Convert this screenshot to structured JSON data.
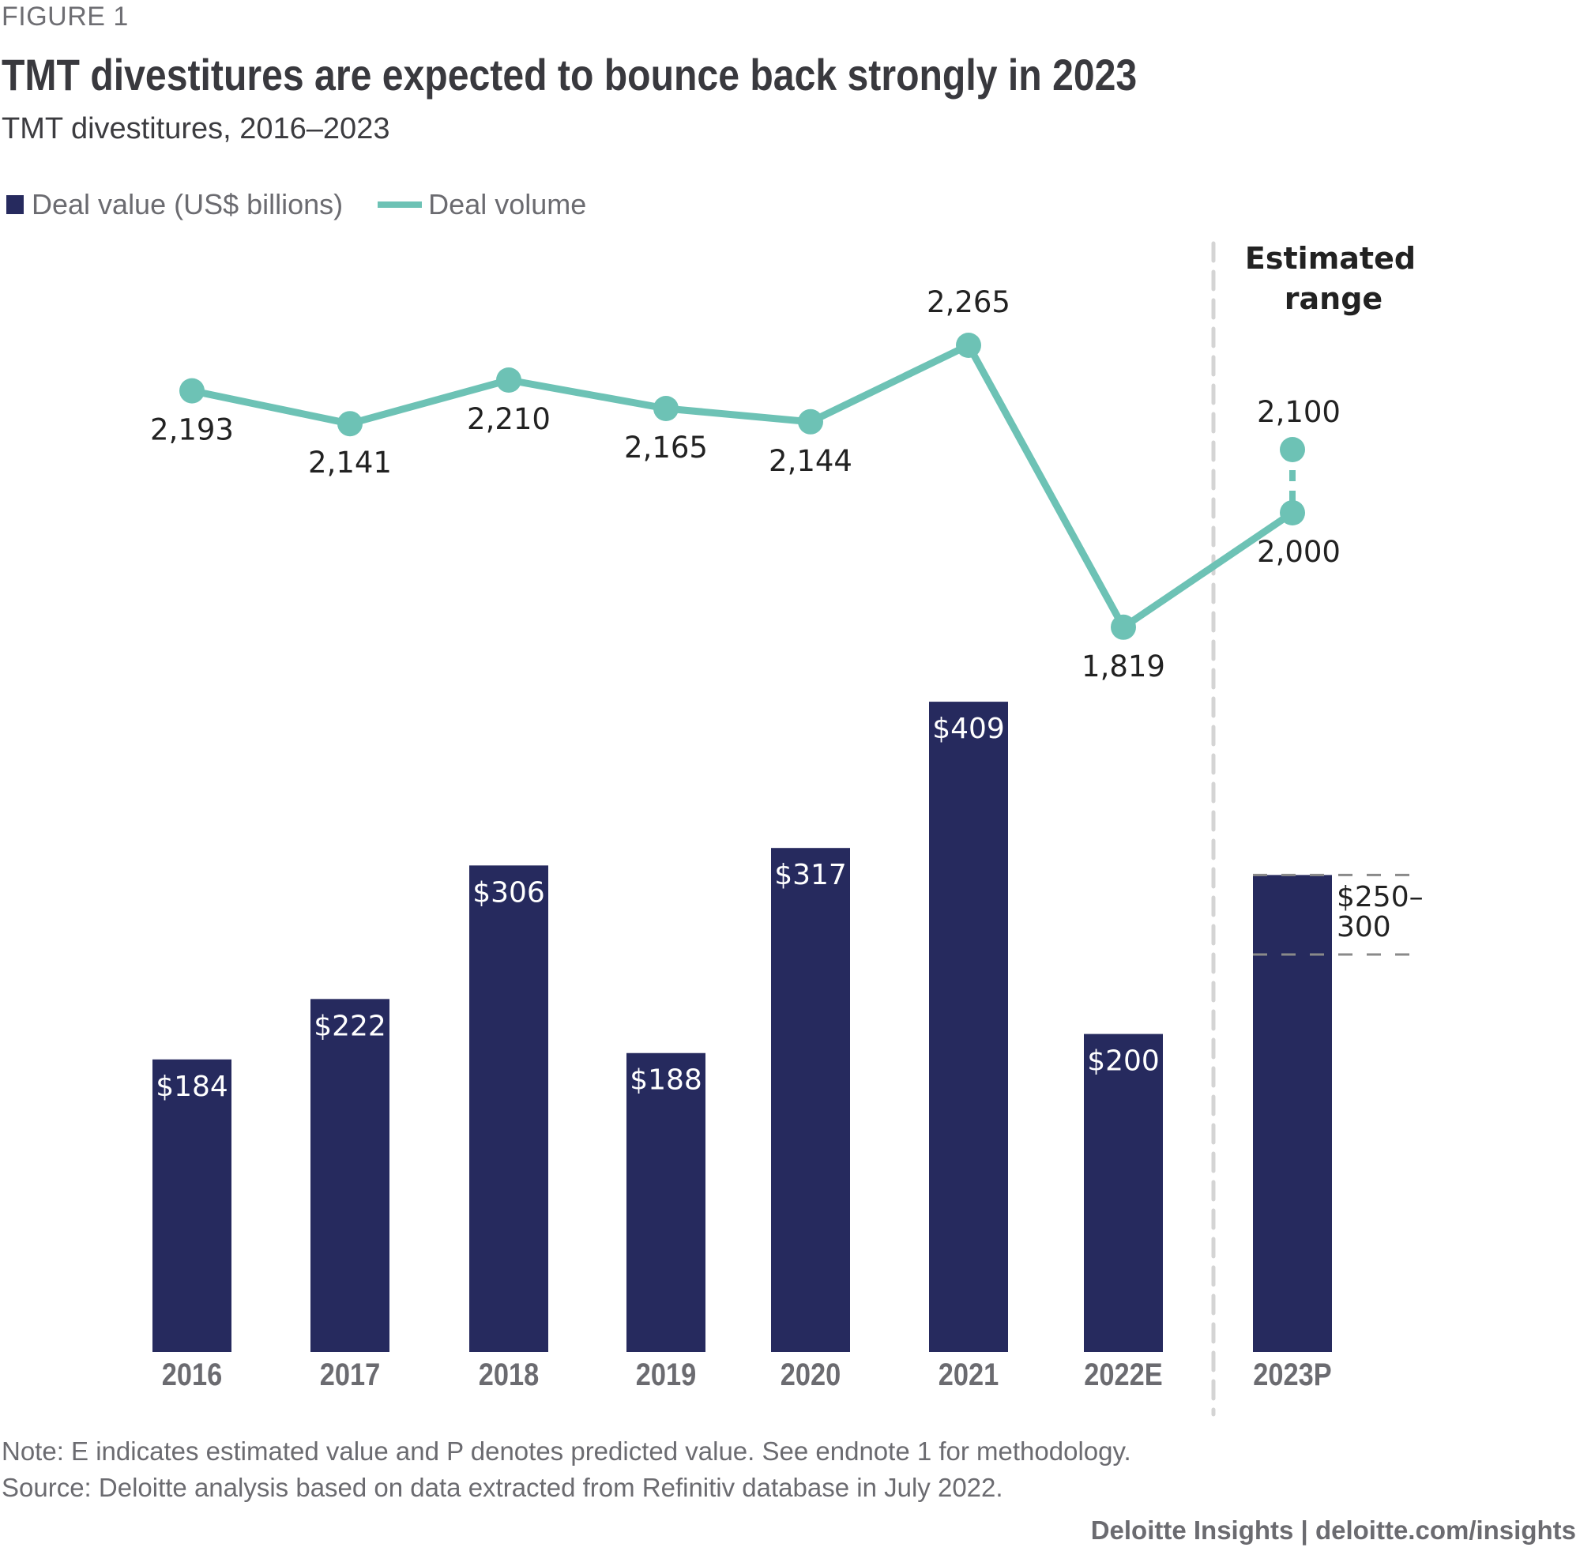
{
  "header": {
    "figure_label": "FIGURE 1",
    "title": "TMT divestitures are expected to bounce back strongly in 2023",
    "subtitle": "TMT divestitures, 2016–2023"
  },
  "legend": {
    "bar_label": "Deal value (US$ billions)",
    "line_label": "Deal volume"
  },
  "annotation": {
    "estimated_range_line1": "Estimated",
    "estimated_range_line2": "range"
  },
  "colors": {
    "bar": "#262a5e",
    "line": "#6dc2b5",
    "text_dark": "#222222",
    "axis_label": "#6b6b70",
    "divider": "#d4d4d4",
    "range_dash": "#8a8a8a"
  },
  "chart_data": {
    "type": "bar",
    "title": "TMT divestitures are expected to bounce back strongly in 2023",
    "subtitle": "TMT divestitures, 2016–2023",
    "xlabel": "",
    "ylabel": "",
    "grid": false,
    "legend_position": "top-left",
    "categories": [
      "2016",
      "2017",
      "2018",
      "2019",
      "2020",
      "2021",
      "2022E",
      "2023P"
    ],
    "series": [
      {
        "name": "Deal value (US$ billions)",
        "type": "bar",
        "values": [
          184,
          222,
          306,
          188,
          317,
          409,
          200,
          300
        ],
        "labels": [
          "$184",
          "$222",
          "$306",
          "$188",
          "$317",
          "$409",
          "$200",
          "$250–300"
        ],
        "range_last": [
          250,
          300
        ]
      },
      {
        "name": "Deal volume",
        "type": "line",
        "values": [
          2193,
          2141,
          2210,
          2165,
          2144,
          2265,
          1819,
          2000
        ],
        "labels": [
          "2,193",
          "2,141",
          "2,210",
          "2,165",
          "2,144",
          "2,265",
          "1,819",
          "2,000"
        ],
        "range_last": [
          2000,
          2100
        ],
        "range_last_labels": [
          "2,000",
          "2,100"
        ]
      }
    ],
    "annotations": [
      "Estimated range"
    ]
  },
  "notes": {
    "note": "Note: E indicates estimated value and P denotes predicted value. See endnote 1 for methodology.",
    "source": "Source: Deloitte analysis based on data extracted from Refinitiv database in July 2022."
  },
  "footer": {
    "credit": "Deloitte Insights | deloitte.com/insights"
  }
}
